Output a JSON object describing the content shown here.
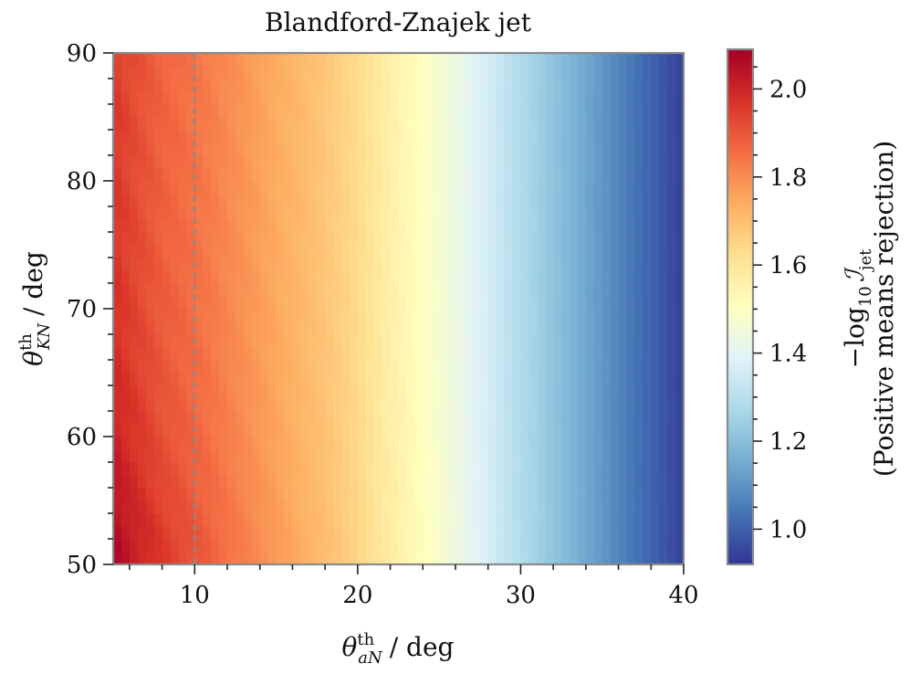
{
  "chart_data": {
    "type": "heatmap",
    "title": "Blandford-Znajek jet",
    "xlabel": {
      "main": "θ",
      "sup": "th",
      "sub": "aN",
      "unit": "/ deg"
    },
    "ylabel": {
      "main": "θ",
      "sup": "th",
      "sub": "KN",
      "unit": "/ deg"
    },
    "xlim": [
      5,
      40
    ],
    "ylim": [
      50,
      90
    ],
    "x_ticks": [
      10,
      20,
      30,
      40
    ],
    "x_tick_labels": [
      "10",
      "20",
      "30",
      "40"
    ],
    "y_ticks": [
      50,
      60,
      70,
      80,
      90
    ],
    "y_tick_labels": [
      "50",
      "60",
      "70",
      "80",
      "90"
    ],
    "x_minor_step": 2,
    "y_minor_step": 2,
    "vline": {
      "x": 10,
      "style": "dashed",
      "color": "#8a8a8a"
    },
    "colorbar": {
      "colormap": "RdYlBu_r",
      "range": [
        0.92,
        2.09
      ],
      "ticks": [
        1.0,
        1.2,
        1.4,
        1.6,
        1.8,
        2.0
      ],
      "tick_labels": [
        "1.0",
        "1.2",
        "1.4",
        "1.6",
        "1.8",
        "2.0"
      ],
      "label_line1": {
        "prefix": "−log",
        "sub": "10",
        "symbol": "ℐ",
        "symbol_sub": "jet"
      },
      "label_line2": "(Positive means rejection)"
    },
    "value_profile_along_x": {
      "x": [
        5,
        6,
        8,
        10,
        12,
        15,
        18,
        20,
        22,
        25,
        28,
        30,
        33,
        36,
        40
      ],
      "value": [
        1.95,
        1.92,
        1.87,
        1.84,
        1.8,
        1.74,
        1.68,
        1.63,
        1.56,
        1.47,
        1.36,
        1.28,
        1.18,
        1.07,
        0.94
      ]
    },
    "low_theta_enhancement": {
      "x_decay_deg": 8,
      "y_peak": 52,
      "y_decay_deg": 12,
      "max_extra": 0.12
    }
  }
}
